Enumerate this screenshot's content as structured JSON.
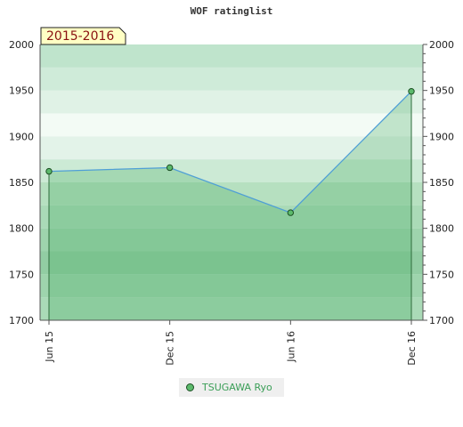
{
  "chart_data": {
    "type": "area",
    "title": "WOF ratinglist",
    "badge": "2015-2016",
    "categories": [
      "Jun 15",
      "Dec 15",
      "Jun 16",
      "Dec 16"
    ],
    "series": [
      {
        "name": "TSUGAWA Ryo",
        "values": [
          1862,
          1866,
          1817,
          1949
        ]
      }
    ],
    "ylim": [
      1700,
      2000
    ],
    "y_ticks": [
      1700,
      1750,
      1800,
      1850,
      1900,
      1950,
      2000
    ],
    "grid": true,
    "legend_position": "bottom-center",
    "colors": {
      "line": "#4f9fd6",
      "marker": "#5cba6c",
      "marker_border": "#1c4f23",
      "legend_text": "#3a9e57",
      "badge_fill": "#ffffc4",
      "badge_text": "#8a1111"
    }
  }
}
